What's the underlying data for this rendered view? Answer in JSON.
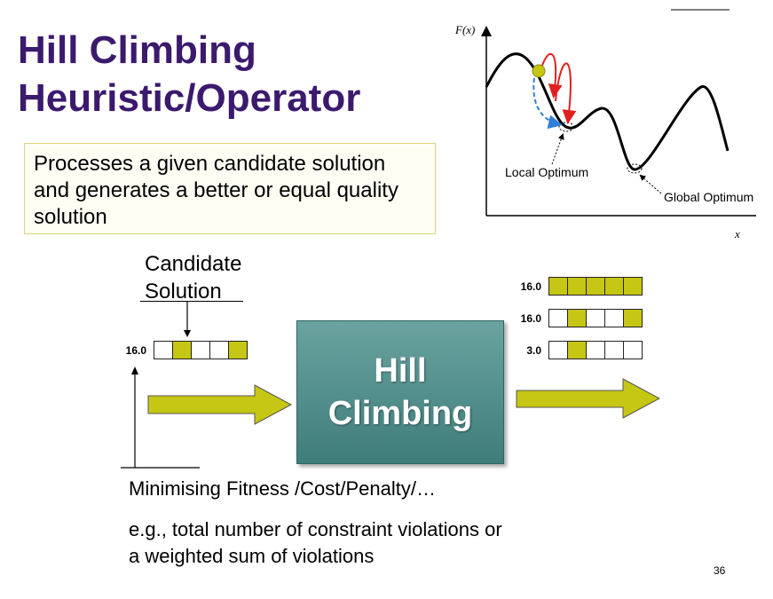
{
  "title_line1": "Hill Climbing",
  "title_line2": "Heuristic/Operator",
  "definition": "Processes a given candidate solution and generates a better or equal quality solution",
  "candidate_label_line1": "Candidate",
  "candidate_label_line2": "Solution",
  "input_solution": {
    "value": "16.0",
    "cells": [
      false,
      true,
      false,
      false,
      true
    ]
  },
  "operator_label_line1": "Hill",
  "operator_label_line2": "Climbing",
  "output_solutions": [
    {
      "value": "16.0",
      "cells": [
        true,
        true,
        true,
        true,
        true
      ]
    },
    {
      "value": "16.0",
      "cells": [
        false,
        true,
        false,
        false,
        true
      ]
    },
    {
      "value": "3.0",
      "cells": [
        false,
        true,
        false,
        false,
        false
      ]
    }
  ],
  "fitness_caption": "Minimising Fitness /Cost/Penalty/…",
  "example_line1": "e.g., total number of  constraint violations or",
  "example_line2": "a weighted sum of violations",
  "graph": {
    "y_axis_label": "F(x)",
    "x_axis_label": "x",
    "local_optimum_label": "Local Optimum",
    "global_optimum_label": "Global Optimum",
    "point_color": "#c6c614",
    "move_color": "#e02020",
    "path_color": "#2f7fd6"
  },
  "colors": {
    "title": "#3b1a6e",
    "cell_on": "#c6c614",
    "arrow": "#c6c614",
    "box": "#4f8d8b"
  },
  "page_number": "36"
}
